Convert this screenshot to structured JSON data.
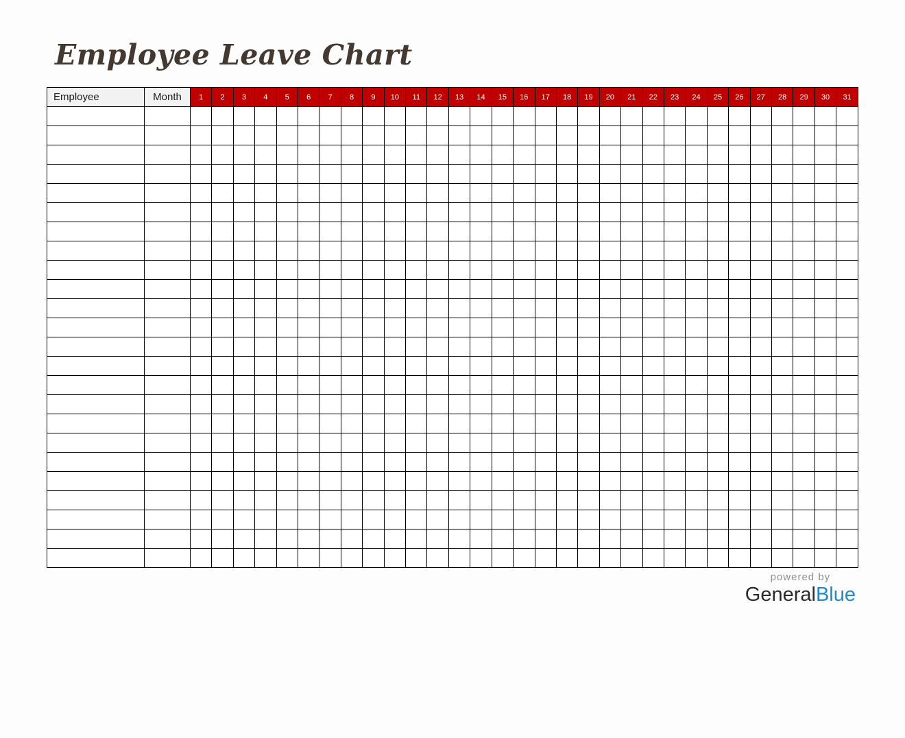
{
  "page": {
    "title": "Employee Leave Chart"
  },
  "table": {
    "employee_header": "Employee",
    "month_header": "Month",
    "days": [
      "1",
      "2",
      "3",
      "4",
      "5",
      "6",
      "7",
      "8",
      "9",
      "10",
      "11",
      "12",
      "13",
      "14",
      "15",
      "16",
      "17",
      "18",
      "19",
      "20",
      "21",
      "22",
      "23",
      "24",
      "25",
      "26",
      "27",
      "28",
      "29",
      "30",
      "31"
    ],
    "row_count": 24,
    "cells_empty": true
  },
  "footer": {
    "powered_by": "powered by",
    "brand_general": "General",
    "brand_blue": "Blue"
  },
  "colors": {
    "day_header_bg": "#c00000",
    "day_header_text": "#ffffff",
    "column_header_bg": "#f2f2f2",
    "grid_border": "#000000",
    "title_text": "#443931",
    "powered_by_text": "#8f8f8f",
    "brand_general_text": "#2b2b2b",
    "brand_blue_text": "#2089cb"
  }
}
